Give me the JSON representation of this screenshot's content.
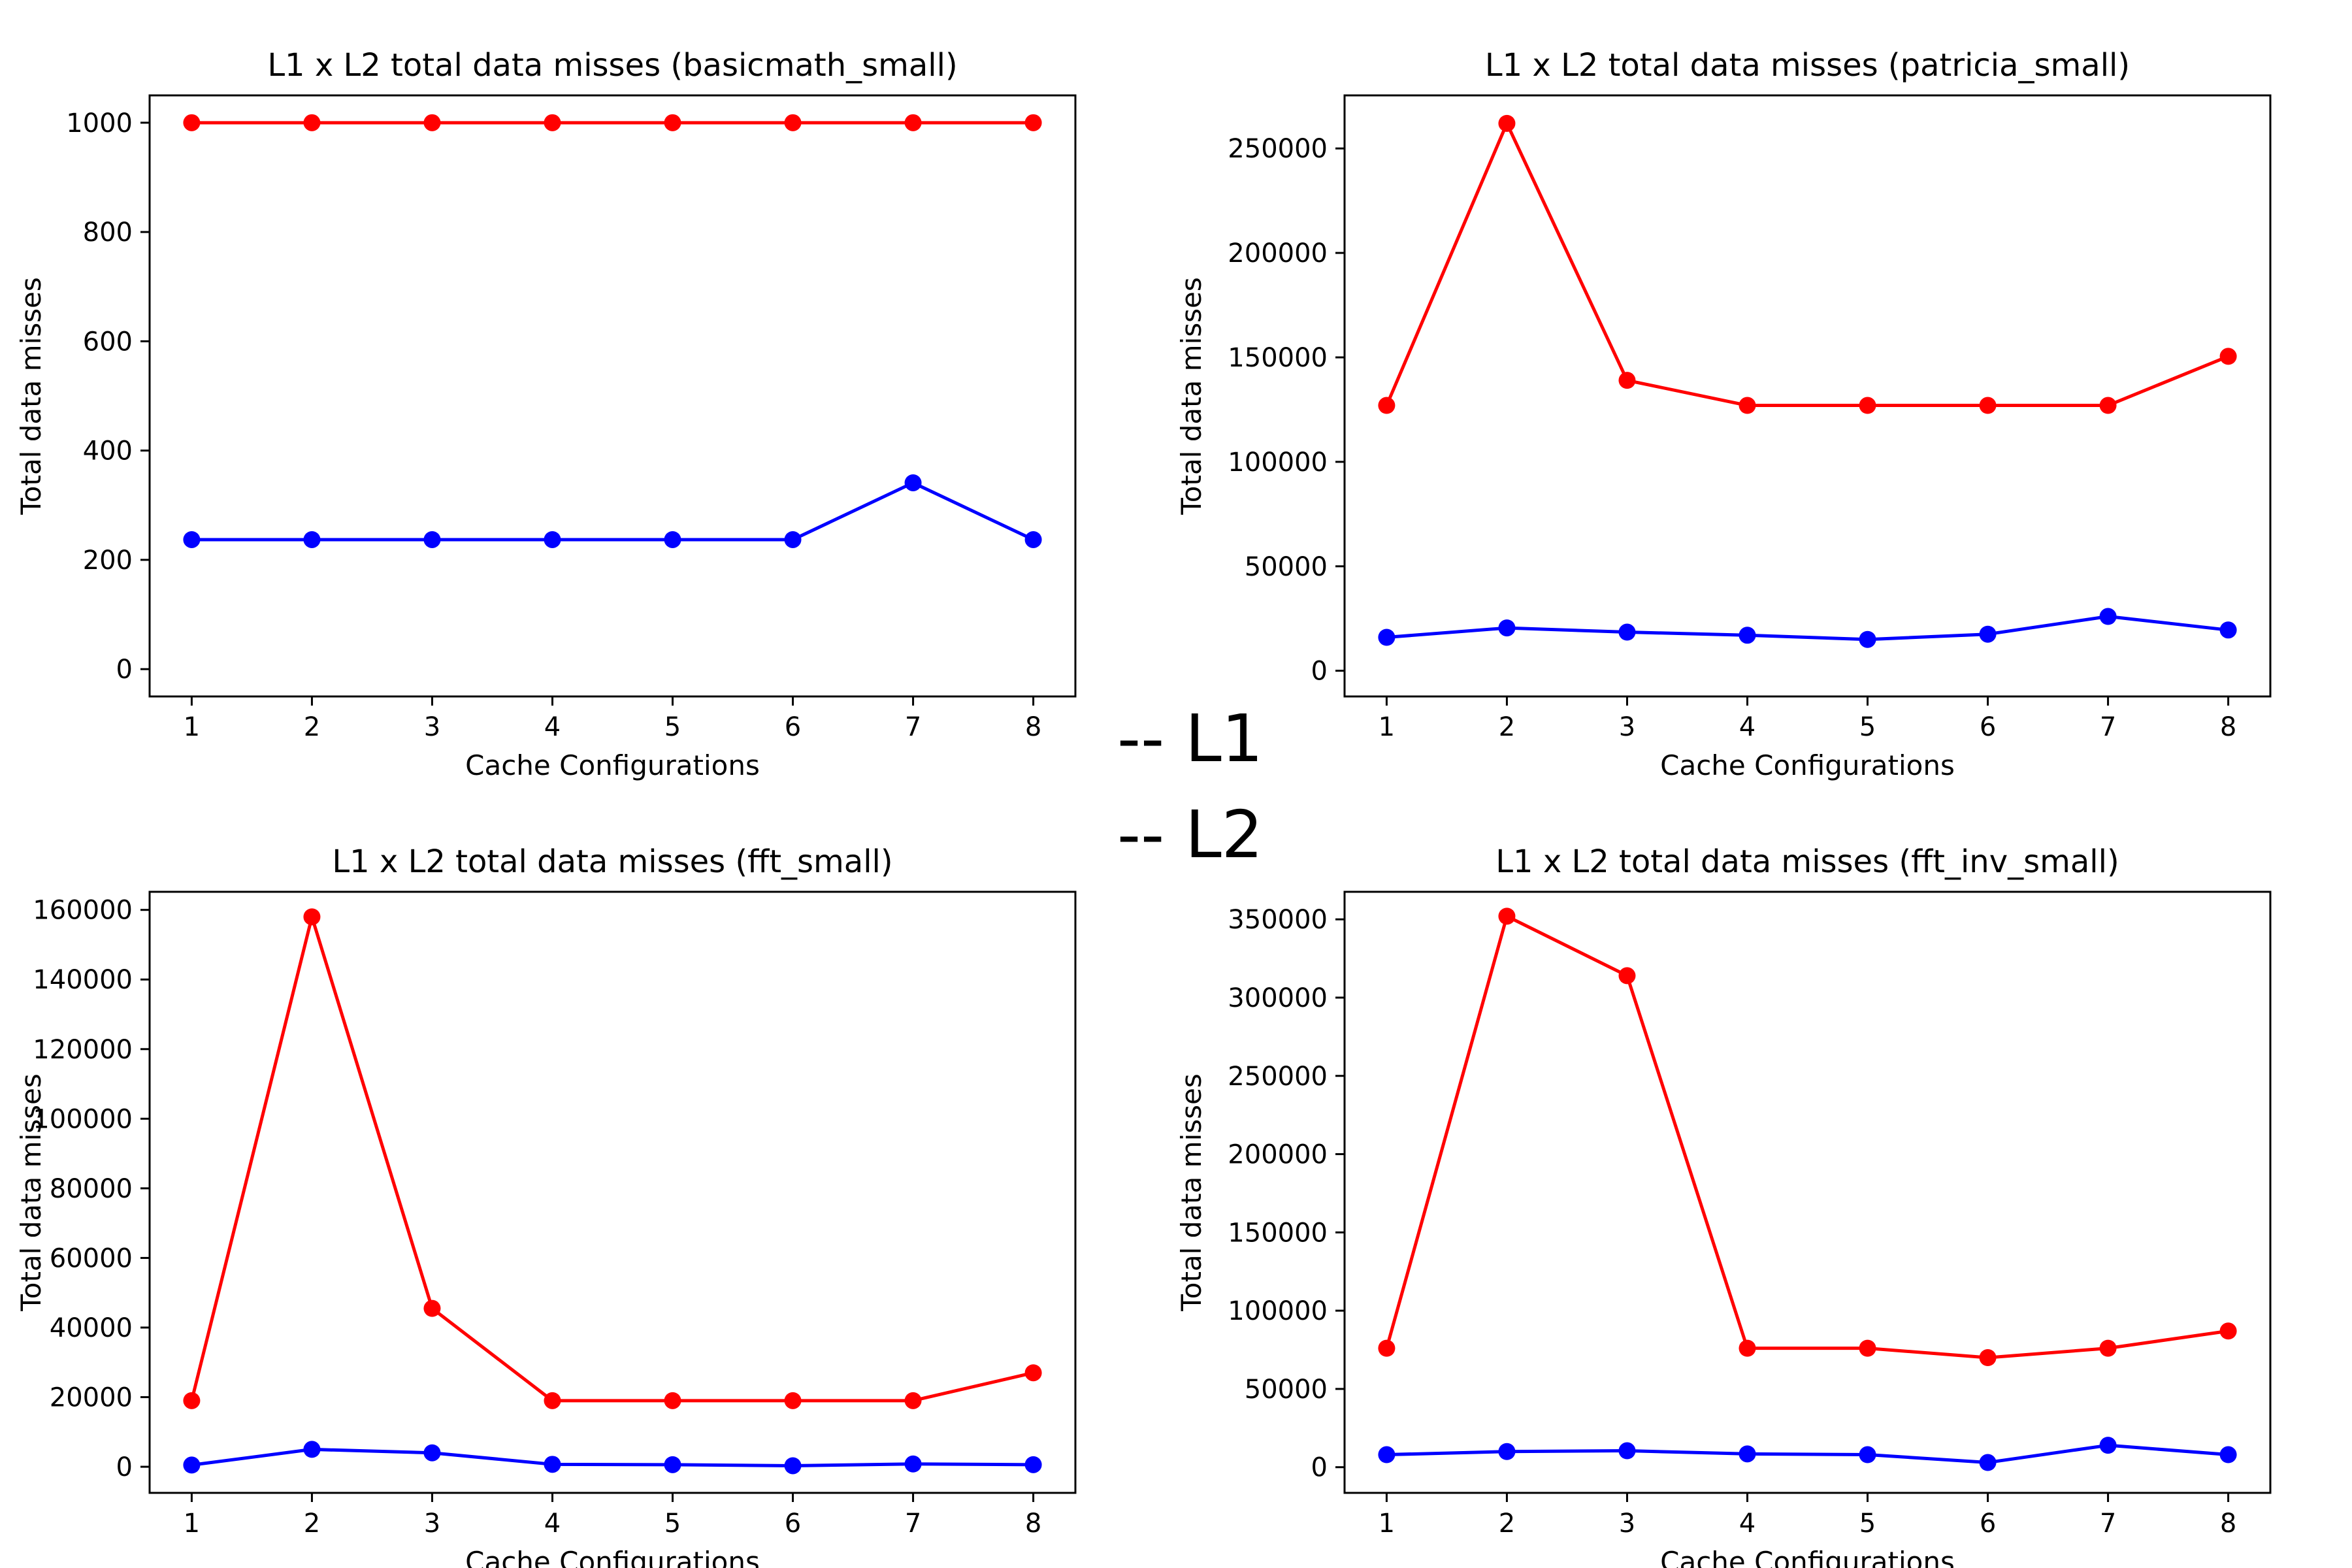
{
  "legend": [
    {
      "label": "-- L1",
      "color": "#ff0000"
    },
    {
      "label": "-- L2",
      "color": "#2b3bdc"
    }
  ],
  "chart_data": [
    {
      "type": "line",
      "title": "L1 x L2 total data misses (basicmath_small)",
      "xlabel": "Cache Configurations",
      "ylabel": "Total data misses",
      "x": [
        1,
        2,
        3,
        4,
        5,
        6,
        7,
        8
      ],
      "ylim": [
        -50,
        1050
      ],
      "yticks": [
        0,
        200,
        400,
        600,
        800,
        1000
      ],
      "series": [
        {
          "color": "#ff0000",
          "values": [
            1000,
            1000,
            1000,
            1000,
            1000,
            1000,
            1000,
            1000
          ]
        },
        {
          "color": "#0000ff",
          "values": [
            237,
            237,
            237,
            237,
            237,
            237,
            341,
            237
          ]
        }
      ]
    },
    {
      "type": "line",
      "title": "L1 x L2 total data misses (patricia_small)",
      "xlabel": "Cache Configurations",
      "ylabel": "Total data misses",
      "x": [
        1,
        2,
        3,
        4,
        5,
        6,
        7,
        8
      ],
      "ylim": [
        -12300,
        275400
      ],
      "yticks": [
        0,
        50000,
        100000,
        150000,
        200000,
        250000
      ],
      "series": [
        {
          "color": "#ff0000",
          "values": [
            127000,
            262000,
            139000,
            127000,
            127000,
            127000,
            127000,
            150500
          ]
        },
        {
          "color": "#0000ff",
          "values": [
            16000,
            20500,
            18500,
            17000,
            15000,
            17500,
            26000,
            19500
          ]
        }
      ]
    },
    {
      "type": "line",
      "title": "L1 x L2 total data misses (fft_small)",
      "xlabel": "Cache Configurations",
      "ylabel": "Total data misses",
      "x": [
        1,
        2,
        3,
        4,
        5,
        6,
        7,
        8
      ],
      "ylim": [
        -7500,
        165200
      ],
      "yticks": [
        0,
        20000,
        40000,
        60000,
        80000,
        100000,
        120000,
        140000,
        160000
      ],
      "series": [
        {
          "color": "#ff0000",
          "values": [
            19000,
            158000,
            45500,
            19000,
            19000,
            19000,
            19000,
            27000
          ]
        },
        {
          "color": "#0000ff",
          "values": [
            500,
            5000,
            4000,
            700,
            600,
            300,
            800,
            600
          ]
        }
      ]
    },
    {
      "type": "line",
      "title": "L1 x L2 total data misses (fft_inv_small)",
      "xlabel": "Cache Configurations",
      "ylabel": "Total data misses",
      "x": [
        1,
        2,
        3,
        4,
        5,
        6,
        7,
        8
      ],
      "ylim": [
        -16400,
        367600
      ],
      "yticks": [
        0,
        50000,
        100000,
        150000,
        200000,
        250000,
        300000,
        350000
      ],
      "series": [
        {
          "color": "#ff0000",
          "values": [
            76000,
            352000,
            314000,
            76000,
            76000,
            70000,
            76000,
            87000
          ]
        },
        {
          "color": "#0000ff",
          "values": [
            8000,
            10000,
            10500,
            8500,
            8000,
            3000,
            14000,
            8000
          ]
        }
      ]
    }
  ]
}
